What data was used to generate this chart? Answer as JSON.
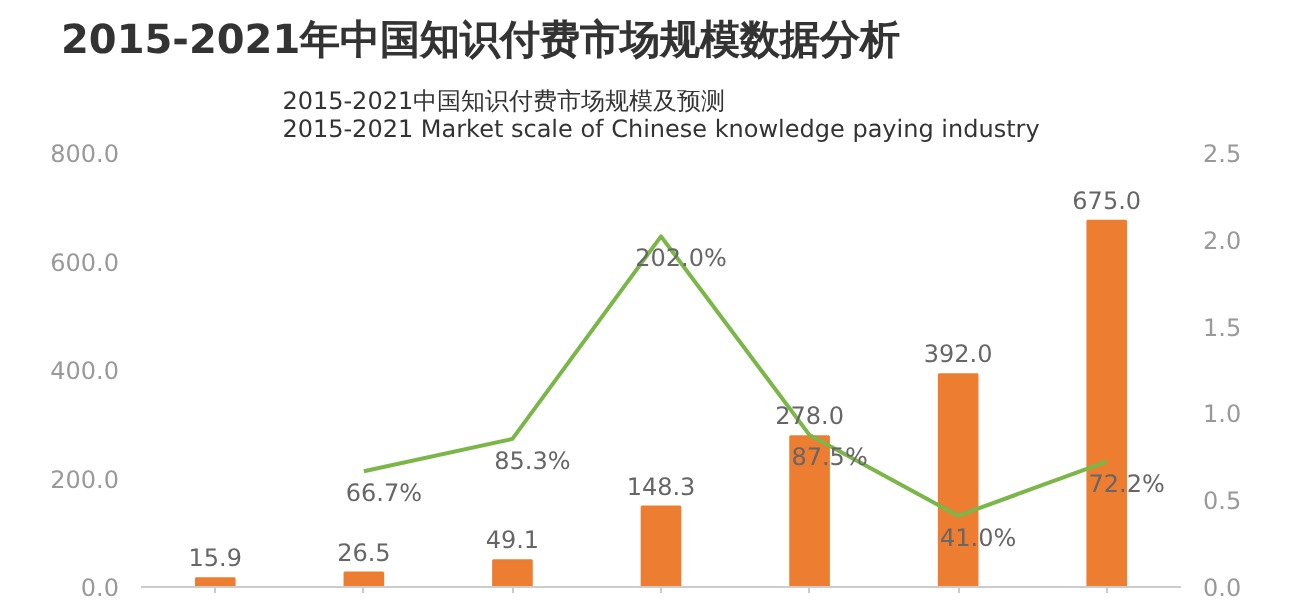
{
  "chart_data": {
    "type": "bar",
    "title": "2015-2021年中国知识付费市场规模数据分析",
    "subtitle": "2015-2021中国知识付费市场规模及预测\n2015-2021 Market scale of Chinese knowledge paying industry",
    "categories": [
      null,
      null,
      null,
      null,
      null,
      null,
      null
    ],
    "ylim": [
      0,
      800
    ],
    "yticks": [
      {
        "value": 0,
        "label": "0.0"
      },
      {
        "value": 200,
        "label": "200.0"
      },
      {
        "value": 400,
        "label": "400.0"
      },
      {
        "value": 600,
        "label": "600.0"
      },
      {
        "value": 800,
        "label": "800.0"
      }
    ],
    "y2lim": [
      0,
      2.5
    ],
    "y2ticks": [
      {
        "value": 0,
        "label": "0.0"
      },
      {
        "value": 0.5,
        "label": "0.5"
      },
      {
        "value": 1,
        "label": "1.0"
      },
      {
        "value": 1.5,
        "label": "1.5"
      },
      {
        "value": 2,
        "label": "2.0"
      },
      {
        "value": 2.5,
        "label": "2.5"
      }
    ],
    "series": [
      {
        "type": "bar",
        "color": "#ed7d31",
        "values": [
          15.9,
          26.5,
          49.1,
          148.3,
          278.0,
          392.0,
          675.0
        ],
        "value_labels": [
          "15.9",
          "26.5",
          "49.1",
          "148.3",
          "278.0",
          "392.0",
          "675.0"
        ]
      },
      {
        "type": "line",
        "axis": "y2",
        "color": "#7ab648",
        "values": [
          null,
          0.667,
          0.853,
          2.02,
          0.875,
          0.41,
          0.722
        ],
        "value_labels": [
          null,
          "66.7%",
          "85.3%",
          "202.0%",
          "87.5%",
          "41.0%",
          "72.2%"
        ]
      }
    ]
  }
}
